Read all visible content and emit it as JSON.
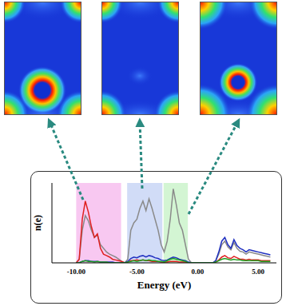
{
  "chart_data": {
    "type": "line",
    "x_label": "Energy (eV)",
    "y_label": "n(e)",
    "x": [
      -10,
      -9.75,
      -9.5,
      -9.25,
      -9,
      -8.75,
      -8.5,
      -8.25,
      -8,
      -7.75,
      -7.5,
      -7.25,
      -7,
      -6.75,
      -6.5,
      -6.25,
      -6,
      -5.75,
      -5.5,
      -5.25,
      -5,
      -4.75,
      -4.5,
      -4.25,
      -4,
      -3.75,
      -3.5,
      -3.25,
      -3,
      -2.75,
      -2.5,
      -2.25,
      -2,
      -1.75,
      -1.5,
      -1.25,
      -1,
      -0.75,
      -0.5,
      -0.25,
      0,
      0.25,
      0.5,
      0.75,
      1,
      1.25,
      1.5,
      1.75,
      2,
      2.25,
      2.5,
      2.75,
      3,
      3.25,
      3.5,
      3.75,
      4,
      4.25,
      4.5,
      4.75,
      5,
      5.25,
      5.5,
      5.75,
      6
    ],
    "series": [
      {
        "color": "#8a8a8a",
        "values": [
          0,
          0.5,
          4.5,
          6.5,
          5.8,
          4.5,
          3.5,
          3.8,
          2.5,
          2,
          1.5,
          1.2,
          1,
          0.8,
          0.5,
          0.2,
          0,
          0.5,
          4.5,
          5.5,
          6,
          7.5,
          8.5,
          7.2,
          8.8,
          7.5,
          6,
          4.5,
          2.5,
          1.5,
          3,
          6,
          10.2,
          8,
          5.5,
          4.5,
          2.5,
          0.5,
          0,
          0,
          0,
          0,
          0,
          0,
          0,
          0,
          0.3,
          1.2,
          2.5,
          3,
          2.2,
          1.8,
          2.8,
          2,
          1.6,
          1.5,
          1.2,
          1.5,
          1.4,
          1.3,
          1.2,
          1.1,
          1,
          0.9,
          0.8
        ]
      },
      {
        "color": "#e02020",
        "values": [
          0,
          0.5,
          6,
          8.5,
          7,
          5,
          3.5,
          4,
          2,
          1.2,
          1,
          0.8,
          0.5,
          0.4,
          0.3,
          0.2,
          0,
          0.1,
          0.3,
          0.3,
          0.4,
          0.3,
          0.4,
          0.3,
          0.3,
          0.2,
          0.2,
          0.2,
          0.1,
          0.1,
          0.1,
          0.2,
          0.2,
          0.2,
          0.1,
          0.1,
          0.1,
          0,
          0,
          0,
          0,
          0,
          0,
          0,
          0,
          0,
          0.1,
          0.4,
          0.8,
          1,
          0.7,
          0.6,
          0.9,
          0.7,
          0.5,
          0.5,
          0.4,
          0.5,
          0.4,
          0.4,
          0.4,
          0.3,
          0.3,
          0.3,
          0.3
        ]
      },
      {
        "color": "#2030c0",
        "values": [
          0,
          0,
          0.2,
          0.3,
          0.3,
          0.2,
          0.2,
          0.2,
          0.1,
          0.1,
          0.1,
          0.1,
          0.1,
          0,
          0,
          0,
          0,
          0.2,
          0.6,
          0.8,
          0.7,
          0.9,
          1,
          0.8,
          1,
          0.9,
          0.7,
          0.6,
          0.4,
          0.3,
          0.4,
          0.6,
          0.8,
          0.7,
          0.5,
          0.4,
          0.3,
          0.1,
          0,
          0,
          0,
          0,
          0,
          0,
          0,
          0,
          0.3,
          1.5,
          3,
          3.5,
          2.5,
          2,
          3.2,
          2.4,
          2,
          1.8,
          1.5,
          1.8,
          1.7,
          1.6,
          1.5,
          1.4,
          1.3,
          1.2,
          1.1
        ]
      },
      {
        "color": "#20a020",
        "values": [
          0,
          0,
          0.2,
          0.3,
          0.2,
          0.2,
          0.1,
          0.2,
          0.1,
          0.1,
          0.1,
          0,
          0,
          0,
          0,
          0,
          0,
          0.1,
          0.2,
          0.3,
          0.2,
          0.3,
          0.4,
          0.3,
          0.4,
          0.3,
          0.3,
          0.2,
          0.2,
          0.1,
          0.3,
          0.5,
          0.6,
          0.5,
          0.4,
          0.3,
          0.2,
          0,
          0,
          0,
          0,
          0,
          0,
          0,
          0,
          0,
          0.1,
          0.3,
          0.5,
          0.6,
          0.5,
          0.4,
          0.5,
          0.4,
          0.4,
          0.3,
          0.3,
          0.3,
          0.3,
          0.3,
          0.3,
          0.2,
          0.2,
          0.2,
          0.2
        ]
      }
    ],
    "xlim": [
      -12,
      6.5
    ],
    "ylim": [
      0,
      11
    ],
    "xticks": [
      {
        "value": -10,
        "label": "-10.00"
      },
      {
        "value": -5,
        "label": "-5.00"
      },
      {
        "value": 0,
        "label": "0.00"
      },
      {
        "value": 5,
        "label": "5.00"
      }
    ],
    "tick_labels": "x",
    "highlight_bands": [
      {
        "x": [
          -10,
          -6.3
        ],
        "color": "#f6b6ec"
      },
      {
        "x": [
          -5.8,
          -2.9
        ],
        "color": "#c2d0f4"
      },
      {
        "x": [
          -2.8,
          -0.8
        ],
        "color": "#c4f2c4"
      }
    ]
  }
}
